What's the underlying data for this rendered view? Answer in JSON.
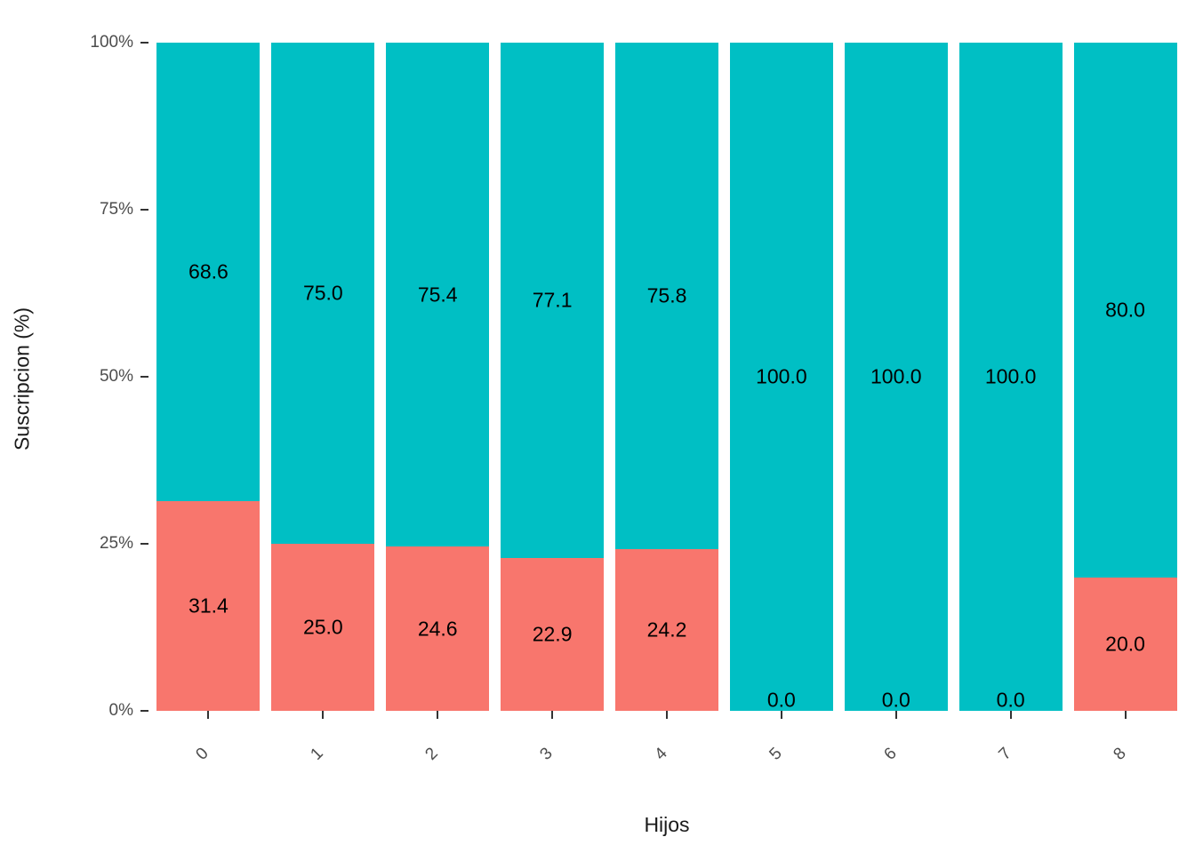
{
  "chart_data": {
    "type": "bar",
    "stacked": true,
    "percent_scale": true,
    "title": "",
    "xlabel": "Hijos",
    "ylabel": "Suscripcion (%)",
    "categories": [
      "0",
      "1",
      "2",
      "3",
      "4",
      "5",
      "6",
      "7",
      "8"
    ],
    "series": [
      {
        "name": "bottom-segment-salmon",
        "color": "#F8766D",
        "values": [
          31.4,
          25.0,
          24.6,
          22.9,
          24.2,
          0.0,
          0.0,
          0.0,
          20.0
        ]
      },
      {
        "name": "top-segment-teal",
        "color": "#00BFC4",
        "values": [
          68.6,
          75.0,
          75.4,
          77.1,
          75.8,
          100.0,
          100.0,
          100.0,
          80.0
        ]
      }
    ],
    "y_ticks": [
      {
        "label": "0%",
        "value": 0
      },
      {
        "label": "25%",
        "value": 25
      },
      {
        "label": "50%",
        "value": 50
      },
      {
        "label": "75%",
        "value": 75
      },
      {
        "label": "100%",
        "value": 100
      }
    ],
    "ylim": [
      0,
      100
    ],
    "grid": false,
    "legend": "none"
  },
  "colors": {
    "teal": "#00BFC4",
    "salmon": "#F8766D",
    "axis_text": "#4D4D4D",
    "label_text": "#000000",
    "background": "#FFFFFF"
  }
}
